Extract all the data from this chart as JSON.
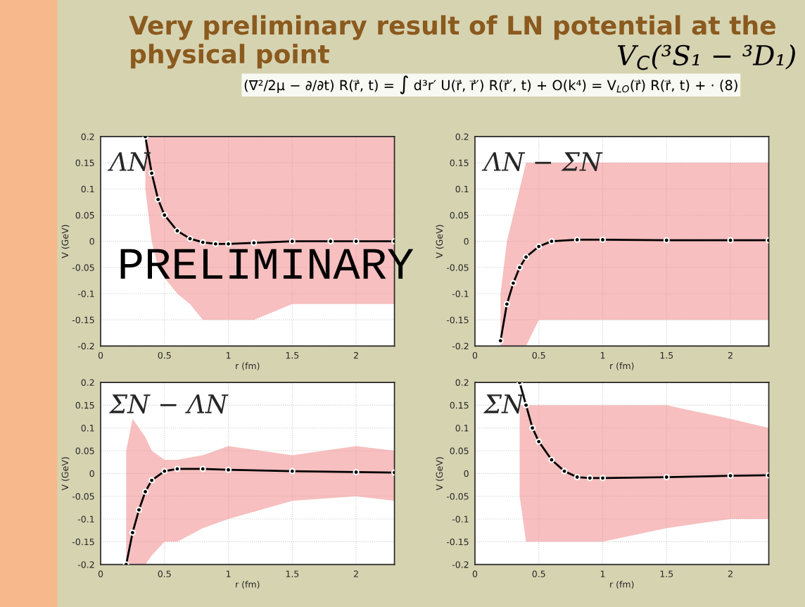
{
  "chart_data": [
    {
      "type": "line",
      "title": "ΛN",
      "xlabel": "r (fm)",
      "ylabel": "V (GeV)",
      "xlim": [
        0,
        2.3
      ],
      "ylim": [
        -0.2,
        0.2
      ],
      "xticks": [
        0,
        0.5,
        1,
        1.5,
        2
      ],
      "yticks": [
        -0.2,
        -0.15,
        -0.1,
        -0.05,
        0,
        0.05,
        0.1,
        0.15,
        0.2
      ],
      "grid": true,
      "legend": false,
      "marker": "circle",
      "line_style": "solid",
      "annotations": [
        "Very preliminary result of LN potential at the physical point",
        "V$_{C}$(³S₁ − ³D₁)",
        "(∇²/2μ − ∂/∂t) R(r⃗, t) = ∫ d³r′ U(r⃗, r⃗′) R(r⃗′, t) + O(k⁴) = V$_{LO}$(r⃗) R(r⃗, t) + · (8)",
        "PRELIMINARY"
      ],
      "x": [
        0.35,
        0.4,
        0.45,
        0.5,
        0.6,
        0.7,
        0.8,
        0.9,
        1.0,
        1.2,
        1.5,
        1.8,
        2.0,
        2.3
      ],
      "series": [
        {
          "color": "#000000",
          "values": [
            0.2,
            0.13,
            0.08,
            0.05,
            0.02,
            0.005,
            -0.002,
            -0.005,
            -0.005,
            -0.003,
            0,
            0,
            0,
            0
          ],
          "lower": [
            0.1,
            0.0,
            -0.05,
            -0.07,
            -0.1,
            -0.12,
            -0.15,
            -0.15,
            -0.15,
            -0.15,
            -0.12,
            -0.12,
            -0.12,
            -0.12
          ],
          "upper": [
            0.2,
            0.2,
            0.2,
            0.2,
            0.2,
            0.2,
            0.2,
            0.2,
            0.2,
            0.2,
            0.2,
            0.2,
            0.2,
            0.2
          ]
        }
      ]
    },
    {
      "type": "line",
      "title": "ΛN − ΣN",
      "xlabel": "r (fm)",
      "ylabel": "V (GeV)",
      "xlim": [
        0,
        2.3
      ],
      "ylim": [
        -0.2,
        0.2
      ],
      "xticks": [
        0,
        0.5,
        1,
        1.5,
        2
      ],
      "yticks": [
        -0.2,
        -0.15,
        -0.1,
        -0.05,
        0,
        0.05,
        0.1,
        0.15,
        0.2
      ],
      "grid": true,
      "legend": false,
      "marker": "circle",
      "line_style": "solid",
      "x": [
        0.2,
        0.25,
        0.3,
        0.35,
        0.4,
        0.5,
        0.6,
        0.8,
        1.0,
        1.5,
        2.0,
        2.3
      ],
      "series": [
        {
          "color": "#000000",
          "values": [
            -0.19,
            -0.12,
            -0.08,
            -0.05,
            -0.03,
            -0.01,
            0,
            0.003,
            0.003,
            0.002,
            0.002,
            0.002
          ],
          "lower": [
            -0.2,
            -0.2,
            -0.2,
            -0.2,
            -0.2,
            -0.15,
            -0.15,
            -0.15,
            -0.15,
            -0.15,
            -0.15,
            -0.15
          ],
          "upper": [
            -0.1,
            0.0,
            0.05,
            0.1,
            0.15,
            0.15,
            0.15,
            0.15,
            0.15,
            0.15,
            0.15,
            0.15
          ]
        }
      ]
    },
    {
      "type": "line",
      "title": "ΣN − ΛN",
      "xlabel": "r (fm)",
      "ylabel": "V (GeV)",
      "xlim": [
        0,
        2.3
      ],
      "ylim": [
        -0.2,
        0.2
      ],
      "xticks": [
        0,
        0.5,
        1,
        1.5,
        2
      ],
      "yticks": [
        -0.2,
        -0.15,
        -0.1,
        -0.05,
        0,
        0.05,
        0.1,
        0.15,
        0.2
      ],
      "grid": true,
      "legend": false,
      "marker": "circle",
      "line_style": "solid",
      "x": [
        0.2,
        0.25,
        0.3,
        0.35,
        0.4,
        0.5,
        0.6,
        0.8,
        1.0,
        1.5,
        2.0,
        2.3
      ],
      "series": [
        {
          "color": "#000000",
          "values": [
            -0.2,
            -0.13,
            -0.08,
            -0.04,
            -0.015,
            0.005,
            0.01,
            0.01,
            0.008,
            0.005,
            0.003,
            0.002
          ],
          "lower": [
            -0.2,
            -0.2,
            -0.2,
            -0.2,
            -0.18,
            -0.15,
            -0.15,
            -0.12,
            -0.1,
            -0.06,
            -0.05,
            -0.06
          ],
          "upper": [
            0.05,
            0.12,
            0.1,
            0.08,
            0.05,
            0.03,
            0.03,
            0.04,
            0.06,
            0.04,
            0.06,
            0.05
          ]
        }
      ]
    },
    {
      "type": "line",
      "title": "ΣN",
      "xlabel": "r (fm)",
      "ylabel": "V (GeV)",
      "xlim": [
        0,
        2.3
      ],
      "ylim": [
        -0.2,
        0.2
      ],
      "xticks": [
        0,
        0.5,
        1,
        1.5,
        2
      ],
      "yticks": [
        -0.2,
        -0.15,
        -0.1,
        -0.05,
        0,
        0.05,
        0.1,
        0.15,
        0.2
      ],
      "grid": true,
      "legend": false,
      "marker": "circle",
      "line_style": "solid",
      "x": [
        0.35,
        0.4,
        0.45,
        0.5,
        0.6,
        0.7,
        0.8,
        0.9,
        1.0,
        1.5,
        2.0,
        2.3
      ],
      "series": [
        {
          "color": "#000000",
          "values": [
            0.2,
            0.15,
            0.1,
            0.07,
            0.03,
            0.005,
            -0.008,
            -0.01,
            -0.01,
            -0.008,
            -0.005,
            -0.004
          ],
          "lower": [
            -0.05,
            -0.15,
            -0.15,
            -0.15,
            -0.15,
            -0.15,
            -0.15,
            -0.15,
            -0.15,
            -0.12,
            -0.1,
            -0.1
          ],
          "upper": [
            0.15,
            0.15,
            0.15,
            0.15,
            0.15,
            0.15,
            0.15,
            0.15,
            0.15,
            0.15,
            0.12,
            0.1
          ]
        }
      ]
    }
  ]
}
